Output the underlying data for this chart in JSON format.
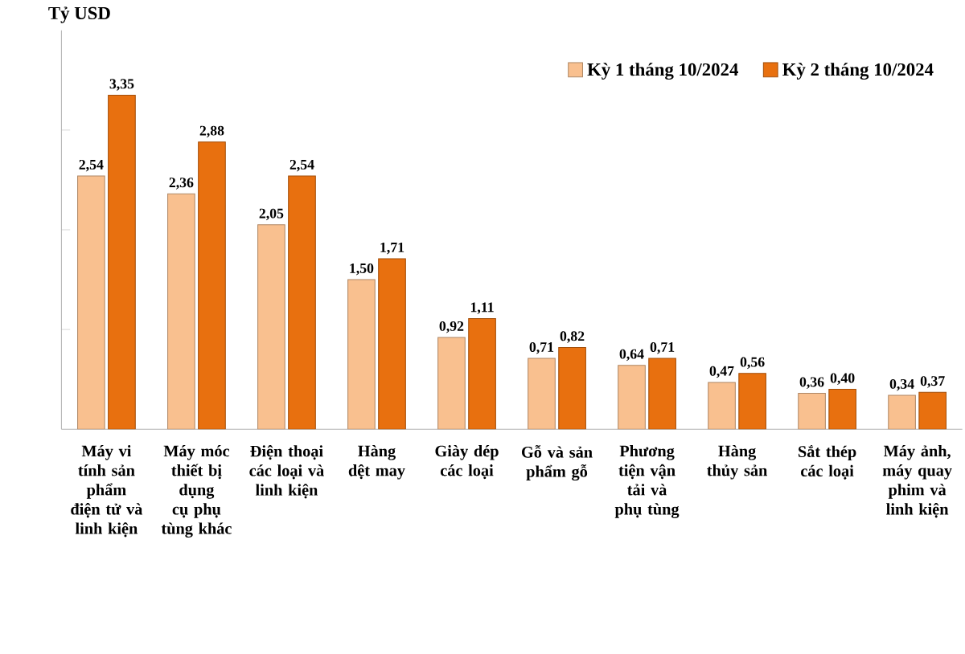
{
  "chart_data": {
    "type": "bar",
    "ylabel": "Tỷ USD",
    "categories": [
      "Máy vi tính sản phẩm điện tử và linh kiện",
      "Máy móc thiết bị dụng cụ phụ tùng khác",
      "Điện thoại các loại và linh kiện",
      "Hàng dệt may",
      "Giày dép các loại",
      "Gỗ và sản phẩm gỗ",
      "Phương tiện vận tải và phụ tùng",
      "Hàng thủy sản",
      "Sắt thép các loại",
      "Máy ảnh, máy quay phim và linh kiện"
    ],
    "series": [
      {
        "name": "Kỳ 1 tháng 10/2024",
        "color": "#f9c08f",
        "values": [
          2.54,
          2.36,
          2.05,
          1.5,
          0.92,
          0.71,
          0.64,
          0.47,
          0.36,
          0.34
        ],
        "value_labels": [
          "2,54",
          "2,36",
          "2,05",
          "1,50",
          "0,92",
          "0,71",
          "0,64",
          "0,47",
          "0,36",
          "0,34"
        ]
      },
      {
        "name": "Kỳ 2 tháng 10/2024",
        "color": "#e8700f",
        "values": [
          3.35,
          2.88,
          2.54,
          1.71,
          1.11,
          0.82,
          0.71,
          0.56,
          0.4,
          0.37
        ],
        "value_labels": [
          "3,35",
          "2,88",
          "2,54",
          "1,71",
          "1,11",
          "0,82",
          "0,71",
          "0,56",
          "0,40",
          "0,37"
        ]
      }
    ],
    "ylim": [
      0,
      4
    ],
    "yticks": [
      {
        "value": 1,
        "label": null
      },
      {
        "value": 2,
        "label": null
      },
      {
        "value": 3,
        "label": null
      }
    ],
    "tick_labels": "x",
    "legend": "top right",
    "grid": false
  }
}
